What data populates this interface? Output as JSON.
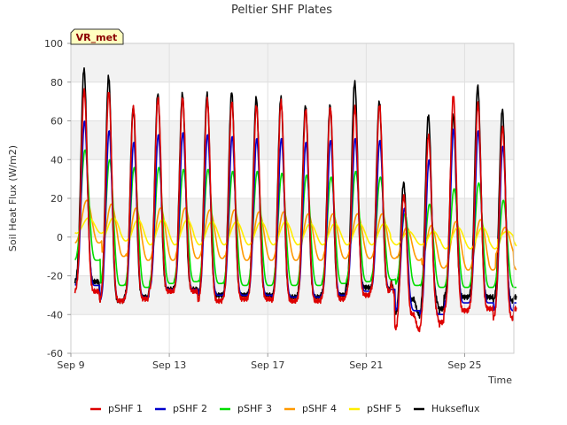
{
  "chart_data": {
    "type": "line",
    "title": "Peltier SHF Plates",
    "xlabel": "Time",
    "ylabel": "Soil Heat Flux (W/m2)",
    "badge": "VR_met",
    "ylim": [
      -60,
      100
    ],
    "yticks": [
      -60,
      -40,
      -20,
      0,
      20,
      40,
      60,
      80,
      100
    ],
    "xlim": [
      "2023-09-09",
      "2023-09-27"
    ],
    "xticks": [
      {
        "date": "2023-09-09",
        "label": "Sep 9"
      },
      {
        "date": "2023-09-13",
        "label": "Sep 13"
      },
      {
        "date": "2023-09-17",
        "label": "Sep 17"
      },
      {
        "date": "2023-09-21",
        "label": "Sep 21"
      },
      {
        "date": "2023-09-25",
        "label": "Sep 25"
      }
    ],
    "legend_position": "bottom",
    "grid": true,
    "series": [
      {
        "name": "pSHF 1",
        "color": "#dd0000"
      },
      {
        "name": "pSHF 2",
        "color": "#0000cc"
      },
      {
        "name": "pSHF 3",
        "color": "#00dd00"
      },
      {
        "name": "pSHF 4",
        "color": "#ff9900"
      },
      {
        "name": "pSHF 5",
        "color": "#ffee00"
      },
      {
        "name": "Hukseflux",
        "color": "#000000"
      }
    ],
    "daily_peaks": {
      "dates": [
        "2023-09-09",
        "2023-09-10",
        "2023-09-11",
        "2023-09-12",
        "2023-09-13",
        "2023-09-14",
        "2023-09-15",
        "2023-09-16",
        "2023-09-17",
        "2023-09-18",
        "2023-09-19",
        "2023-09-20",
        "2023-09-21",
        "2023-09-22",
        "2023-09-23",
        "2023-09-24",
        "2023-09-25",
        "2023-09-26"
      ],
      "pSHF 1": [
        76,
        75,
        67,
        72,
        72,
        71,
        70,
        68,
        70,
        66,
        67,
        67,
        68,
        20,
        55,
        73,
        69,
        57
      ],
      "pSHF 2": [
        60,
        55,
        49,
        53,
        54,
        53,
        52,
        51,
        51,
        49,
        50,
        51,
        50,
        15,
        40,
        56,
        55,
        47
      ],
      "pSHF 3": [
        45,
        40,
        36,
        36,
        35,
        35,
        34,
        34,
        33,
        32,
        31,
        34,
        31,
        12,
        17,
        25,
        28,
        19
      ],
      "pSHF 4": [
        19,
        17,
        15,
        15,
        15,
        14,
        14,
        13,
        13,
        12,
        12,
        12,
        12,
        5,
        6,
        8,
        9,
        5
      ],
      "pSHF 5": [
        10,
        10,
        9,
        9,
        9,
        8,
        8,
        8,
        8,
        7,
        7,
        7,
        7,
        3,
        3,
        5,
        5,
        3
      ],
      "Hukseflux": [
        87,
        83,
        67,
        74,
        74,
        74,
        75,
        72,
        72,
        68,
        68,
        80,
        70,
        26,
        65,
        63,
        78,
        66
      ]
    },
    "daily_minima": {
      "pSHF 1": [
        -28,
        -33,
        -32,
        -28,
        -28,
        -33,
        -32,
        -32,
        -33,
        -33,
        -32,
        -30,
        -28,
        -44,
        -44,
        -38,
        -37,
        -42
      ],
      "pSHF 2": [
        -25,
        -33,
        -31,
        -27,
        -27,
        -30,
        -30,
        -30,
        -31,
        -31,
        -30,
        -28,
        -27,
        -38,
        -40,
        -34,
        -34,
        -38
      ],
      "pSHF 3": [
        -12,
        -25,
        -26,
        -24,
        -23,
        -24,
        -25,
        -25,
        -25,
        -25,
        -24,
        -23,
        -22,
        -25,
        -26,
        -26,
        -26,
        -26
      ],
      "pSHF 4": [
        -3,
        -10,
        -12,
        -12,
        -11,
        -11,
        -12,
        -12,
        -12,
        -12,
        -11,
        -11,
        -11,
        -12,
        -16,
        -17,
        -17,
        -10
      ],
      "pSHF 5": [
        2,
        -2,
        -4,
        -4,
        -4,
        -4,
        -4,
        -4,
        -4,
        -4,
        -4,
        -4,
        -4,
        -4,
        -6,
        -6,
        -6,
        -2
      ],
      "Hukseflux": [
        -23,
        -33,
        -31,
        -27,
        -27,
        -30,
        -30,
        -30,
        -31,
        -31,
        -30,
        -26,
        -27,
        -36,
        -37,
        -31,
        -31,
        -33
      ]
    }
  }
}
